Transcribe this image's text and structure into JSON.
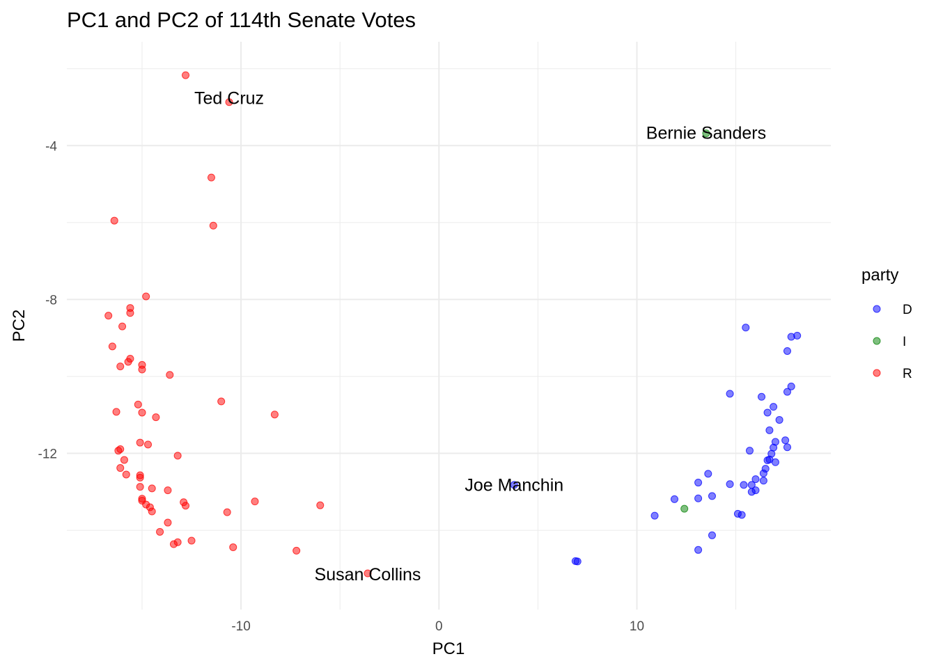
{
  "colors": {
    "D": "#0000ff",
    "I": "#008000",
    "R": "#ff0000"
  },
  "chart_data": {
    "type": "scatter",
    "title": "PC1 and PC2 of 114th Senate Votes",
    "xlabel": "PC1",
    "ylabel": "PC2",
    "xlim": [
      -18.8,
      19.8
    ],
    "ylim": [
      -16.06,
      -1.3
    ],
    "x_major_ticks": [
      -10,
      0,
      10
    ],
    "x_minor_ticks": [
      -15,
      -5,
      5,
      15
    ],
    "y_major_ticks": [
      -12,
      -8,
      -4
    ],
    "y_minor_ticks": [
      -14,
      -10,
      -6,
      -2
    ],
    "x_tick_labels": [
      "-10",
      "0",
      "10"
    ],
    "y_tick_labels": [
      "-12",
      "-8",
      "-4"
    ],
    "grid": true,
    "legend": {
      "title": "party",
      "placement": "right",
      "entries": [
        "D",
        "I",
        "R"
      ]
    },
    "point_opacity": 0.5,
    "annotations": [
      {
        "label": "Ted Cruz",
        "x": -10.6,
        "y": -2.76
      },
      {
        "label": "Bernie Sanders",
        "x": 13.5,
        "y": -3.66
      },
      {
        "label": "Joe Manchin",
        "x": 3.8,
        "y": -12.81
      },
      {
        "label": "Susan Collins",
        "x": -3.6,
        "y": -15.14
      }
    ],
    "series": [
      {
        "name": "R",
        "points": [
          [
            -12.8,
            -2.17
          ],
          [
            -10.6,
            -2.87
          ],
          [
            -11.5,
            -4.83
          ],
          [
            -11.4,
            -6.08
          ],
          [
            -16.4,
            -5.95
          ],
          [
            -14.8,
            -7.92
          ],
          [
            -15.6,
            -8.22
          ],
          [
            -15.6,
            -8.35
          ],
          [
            -16.0,
            -8.7
          ],
          [
            -16.7,
            -8.42
          ],
          [
            -16.5,
            -9.22
          ],
          [
            -15.6,
            -9.54
          ],
          [
            -15.7,
            -9.62
          ],
          [
            -16.1,
            -9.74
          ],
          [
            -15.0,
            -9.7
          ],
          [
            -15.0,
            -9.82
          ],
          [
            -13.6,
            -9.96
          ],
          [
            -11.0,
            -10.65
          ],
          [
            -8.3,
            -10.99
          ],
          [
            -15.2,
            -10.73
          ],
          [
            -15.0,
            -10.94
          ],
          [
            -16.3,
            -10.92
          ],
          [
            -14.3,
            -11.06
          ],
          [
            -15.1,
            -11.72
          ],
          [
            -14.7,
            -11.77
          ],
          [
            -16.1,
            -11.89
          ],
          [
            -16.2,
            -11.93
          ],
          [
            -13.2,
            -12.06
          ],
          [
            -15.9,
            -12.17
          ],
          [
            -16.1,
            -12.38
          ],
          [
            -15.8,
            -12.55
          ],
          [
            -15.1,
            -12.57
          ],
          [
            -15.1,
            -12.63
          ],
          [
            -14.5,
            -12.91
          ],
          [
            -13.7,
            -12.96
          ],
          [
            -15.1,
            -12.87
          ],
          [
            -15.0,
            -13.18
          ],
          [
            -15.0,
            -13.23
          ],
          [
            -14.8,
            -13.33
          ],
          [
            -14.6,
            -13.4
          ],
          [
            -14.5,
            -13.51
          ],
          [
            -12.9,
            -13.27
          ],
          [
            -12.8,
            -13.36
          ],
          [
            -10.7,
            -13.53
          ],
          [
            -9.3,
            -13.25
          ],
          [
            -6.0,
            -13.35
          ],
          [
            -13.7,
            -13.8
          ],
          [
            -14.1,
            -14.04
          ],
          [
            -13.4,
            -14.36
          ],
          [
            -13.2,
            -14.31
          ],
          [
            -12.5,
            -14.27
          ],
          [
            -10.4,
            -14.44
          ],
          [
            -7.2,
            -14.53
          ],
          [
            -3.6,
            -15.12
          ]
        ]
      },
      {
        "name": "D",
        "points": [
          [
            15.5,
            -8.73
          ],
          [
            17.8,
            -8.97
          ],
          [
            18.1,
            -8.94
          ],
          [
            17.6,
            -9.34
          ],
          [
            17.8,
            -10.26
          ],
          [
            14.7,
            -10.45
          ],
          [
            16.3,
            -10.53
          ],
          [
            17.6,
            -10.4
          ],
          [
            16.6,
            -10.94
          ],
          [
            16.9,
            -10.79
          ],
          [
            17.2,
            -11.13
          ],
          [
            16.7,
            -11.4
          ],
          [
            17.5,
            -11.66
          ],
          [
            17.0,
            -11.7
          ],
          [
            17.6,
            -11.84
          ],
          [
            15.7,
            -11.93
          ],
          [
            16.9,
            -11.85
          ],
          [
            16.8,
            -12.01
          ],
          [
            16.7,
            -12.16
          ],
          [
            16.6,
            -12.18
          ],
          [
            17.0,
            -12.23
          ],
          [
            16.5,
            -12.4
          ],
          [
            16.4,
            -12.52
          ],
          [
            13.6,
            -12.53
          ],
          [
            16.4,
            -12.71
          ],
          [
            16.0,
            -12.67
          ],
          [
            13.1,
            -12.76
          ],
          [
            14.7,
            -12.8
          ],
          [
            15.4,
            -12.82
          ],
          [
            15.8,
            -12.82
          ],
          [
            16.0,
            -12.96
          ],
          [
            15.8,
            -13.0
          ],
          [
            13.8,
            -13.11
          ],
          [
            13.1,
            -13.17
          ],
          [
            11.9,
            -13.19
          ],
          [
            3.8,
            -12.82
          ],
          [
            15.1,
            -13.57
          ],
          [
            15.3,
            -13.6
          ],
          [
            10.9,
            -13.62
          ],
          [
            13.8,
            -14.13
          ],
          [
            13.1,
            -14.51
          ],
          [
            6.9,
            -14.8
          ],
          [
            7.0,
            -14.81
          ]
        ]
      },
      {
        "name": "I",
        "points": [
          [
            13.5,
            -3.68
          ],
          [
            12.4,
            -13.44
          ]
        ]
      }
    ]
  }
}
